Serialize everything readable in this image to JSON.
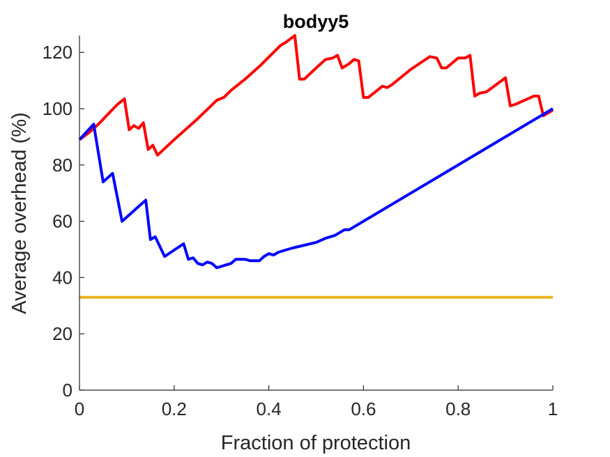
{
  "chart_data": {
    "type": "line",
    "title": "bodyy5",
    "xlabel": "Fraction of protection",
    "ylabel": "Average overhead (%)",
    "xlim": [
      0,
      1
    ],
    "ylim": [
      0,
      126
    ],
    "xticks": [
      0,
      0.2,
      0.4,
      0.6,
      0.8,
      1
    ],
    "xtick_labels": [
      "0",
      "0.2",
      "0.4",
      "0.6",
      "0.8",
      "1"
    ],
    "yticks": [
      0,
      20,
      40,
      60,
      80,
      100,
      120
    ],
    "ytick_labels": [
      "0",
      "20",
      "40",
      "60",
      "80",
      "100",
      "120"
    ],
    "grid": false,
    "legend": "none",
    "series": [
      {
        "color": "#ff0000",
        "points": [
          [
            0,
            89
          ],
          [
            0.02,
            91.5
          ],
          [
            0.04,
            94.5
          ],
          [
            0.06,
            98
          ],
          [
            0.08,
            101.5
          ],
          [
            0.095,
            103.5
          ],
          [
            0.105,
            92.5
          ],
          [
            0.115,
            94
          ],
          [
            0.125,
            93
          ],
          [
            0.135,
            95
          ],
          [
            0.145,
            85.5
          ],
          [
            0.155,
            87
          ],
          [
            0.165,
            83.5
          ],
          [
            0.2,
            89
          ],
          [
            0.25,
            96.5
          ],
          [
            0.29,
            103
          ],
          [
            0.305,
            104
          ],
          [
            0.32,
            106.5
          ],
          [
            0.35,
            110.5
          ],
          [
            0.38,
            115
          ],
          [
            0.41,
            120
          ],
          [
            0.425,
            122.5
          ],
          [
            0.435,
            123.5
          ],
          [
            0.455,
            126
          ],
          [
            0.465,
            110.5
          ],
          [
            0.475,
            110.5
          ],
          [
            0.5,
            114.5
          ],
          [
            0.52,
            117.5
          ],
          [
            0.535,
            118
          ],
          [
            0.545,
            119
          ],
          [
            0.555,
            114.5
          ],
          [
            0.57,
            116
          ],
          [
            0.58,
            117.5
          ],
          [
            0.59,
            117
          ],
          [
            0.6,
            104
          ],
          [
            0.61,
            104
          ],
          [
            0.64,
            108
          ],
          [
            0.65,
            107.5
          ],
          [
            0.66,
            108.5
          ],
          [
            0.7,
            114
          ],
          [
            0.74,
            118.5
          ],
          [
            0.755,
            118
          ],
          [
            0.765,
            114.5
          ],
          [
            0.775,
            114.5
          ],
          [
            0.8,
            118
          ],
          [
            0.815,
            118
          ],
          [
            0.825,
            119
          ],
          [
            0.835,
            104.5
          ],
          [
            0.845,
            105.5
          ],
          [
            0.86,
            106
          ],
          [
            0.9,
            111
          ],
          [
            0.91,
            101
          ],
          [
            0.92,
            101.5
          ],
          [
            0.96,
            104.5
          ],
          [
            0.97,
            104.5
          ],
          [
            0.98,
            97.5
          ],
          [
            1,
            99.5
          ]
        ]
      },
      {
        "color": "#0000ff",
        "points": [
          [
            0,
            89
          ],
          [
            0.03,
            94.5
          ],
          [
            0.05,
            74
          ],
          [
            0.07,
            77
          ],
          [
            0.09,
            60
          ],
          [
            0.14,
            67.5
          ],
          [
            0.15,
            53.5
          ],
          [
            0.16,
            54.5
          ],
          [
            0.18,
            47.5
          ],
          [
            0.22,
            52
          ],
          [
            0.23,
            46.5
          ],
          [
            0.24,
            47
          ],
          [
            0.25,
            45
          ],
          [
            0.26,
            44.5
          ],
          [
            0.27,
            45.5
          ],
          [
            0.28,
            45
          ],
          [
            0.29,
            43.5
          ],
          [
            0.3,
            44
          ],
          [
            0.31,
            44.5
          ],
          [
            0.32,
            45
          ],
          [
            0.33,
            46.5
          ],
          [
            0.34,
            46.5
          ],
          [
            0.35,
            46.5
          ],
          [
            0.36,
            46
          ],
          [
            0.37,
            46
          ],
          [
            0.38,
            46
          ],
          [
            0.39,
            47.5
          ],
          [
            0.4,
            48.5
          ],
          [
            0.41,
            48
          ],
          [
            0.42,
            49
          ],
          [
            0.43,
            49.5
          ],
          [
            0.45,
            50.5
          ],
          [
            0.5,
            52.5
          ],
          [
            0.52,
            54
          ],
          [
            0.54,
            55
          ],
          [
            0.56,
            57
          ],
          [
            0.57,
            57
          ],
          [
            0.58,
            58
          ],
          [
            1,
            100
          ]
        ]
      },
      {
        "color": "#edb120",
        "points": [
          [
            0,
            33
          ],
          [
            1,
            33
          ]
        ]
      }
    ]
  }
}
